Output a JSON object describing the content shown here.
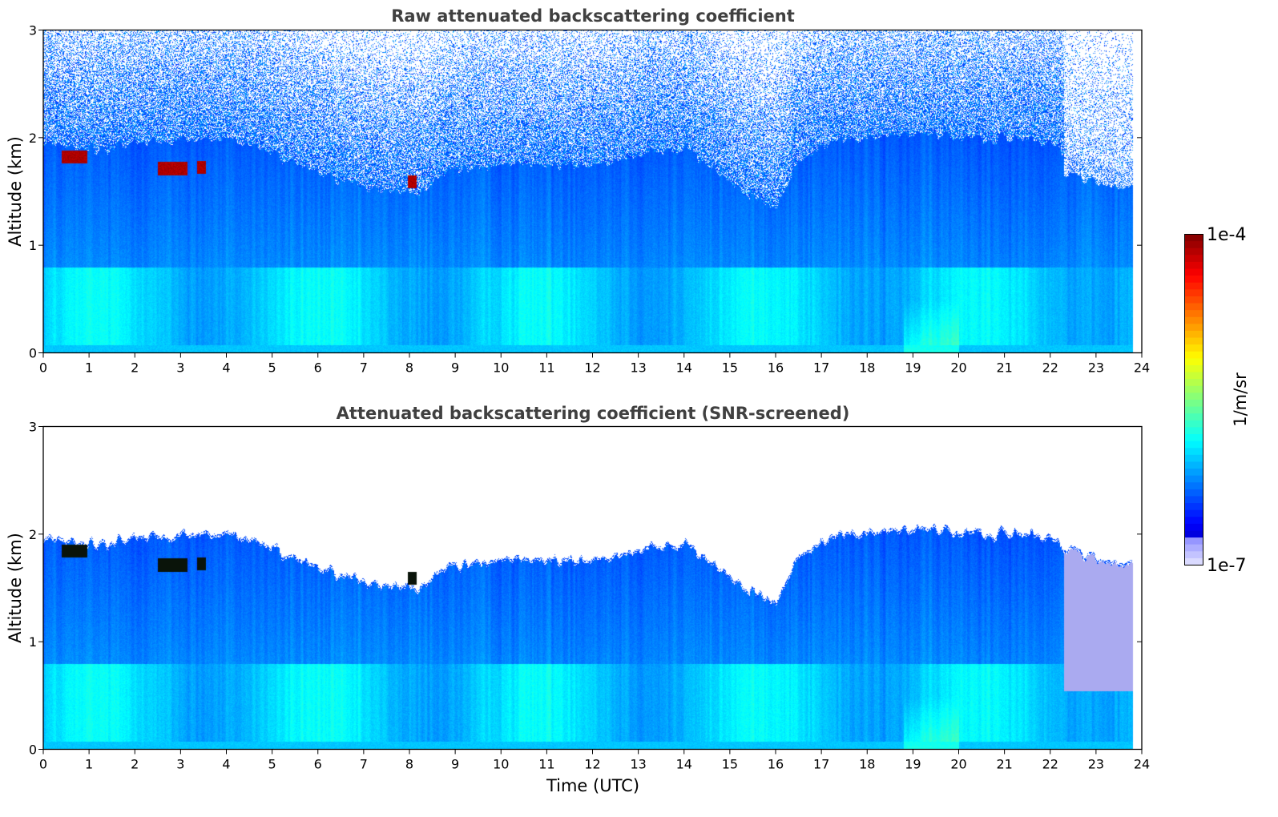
{
  "chart_data": [
    {
      "type": "heatmap",
      "title": "Raw attenuated backscattering coefficient",
      "ylabel": "Altitude (km)",
      "xlabel": "",
      "xlim": [
        0,
        24
      ],
      "ylim": [
        0,
        3
      ],
      "xticks": [
        "0",
        "1",
        "2",
        "3",
        "4",
        "5",
        "6",
        "7",
        "8",
        "9",
        "10",
        "11",
        "12",
        "13",
        "14",
        "15",
        "16",
        "17",
        "18",
        "19",
        "20",
        "21",
        "22",
        "23",
        "24"
      ],
      "yticks": [
        "0",
        "1",
        "2",
        "3"
      ],
      "data_end_time": 23.8,
      "screened": false,
      "clouds": [
        {
          "t0": 0.4,
          "t1": 0.95,
          "z": 1.83
        },
        {
          "t0": 2.5,
          "t1": 3.15,
          "z": 1.72
        },
        {
          "t0": 3.35,
          "t1": 3.55,
          "z": 1.73
        },
        {
          "t0": 7.95,
          "t1": 8.15,
          "z": 1.6
        }
      ]
    },
    {
      "type": "heatmap",
      "title": "Attenuated backscattering coefficient (SNR-screened)",
      "ylabel": "Altitude (km)",
      "xlabel": "Time (UTC)",
      "xlim": [
        0,
        24
      ],
      "ylim": [
        0,
        3
      ],
      "xticks": [
        "0",
        "1",
        "2",
        "3",
        "4",
        "5",
        "6",
        "7",
        "8",
        "9",
        "10",
        "11",
        "12",
        "13",
        "14",
        "15",
        "16",
        "17",
        "18",
        "19",
        "20",
        "21",
        "22",
        "23",
        "24"
      ],
      "yticks": [
        "0",
        "1",
        "2",
        "3"
      ],
      "data_end_time": 23.8,
      "screened": true,
      "clouds": [
        {
          "t0": 0.4,
          "t1": 0.95,
          "z": 1.85
        },
        {
          "t0": 2.5,
          "t1": 3.15,
          "z": 1.72
        },
        {
          "t0": 3.35,
          "t1": 3.55,
          "z": 1.73
        },
        {
          "t0": 7.95,
          "t1": 8.15,
          "z": 1.6
        }
      ]
    }
  ],
  "colorbar": {
    "label": "1/m/sr",
    "max_label": "1e-4",
    "min_label": "1e-7",
    "colormap": "jet"
  }
}
